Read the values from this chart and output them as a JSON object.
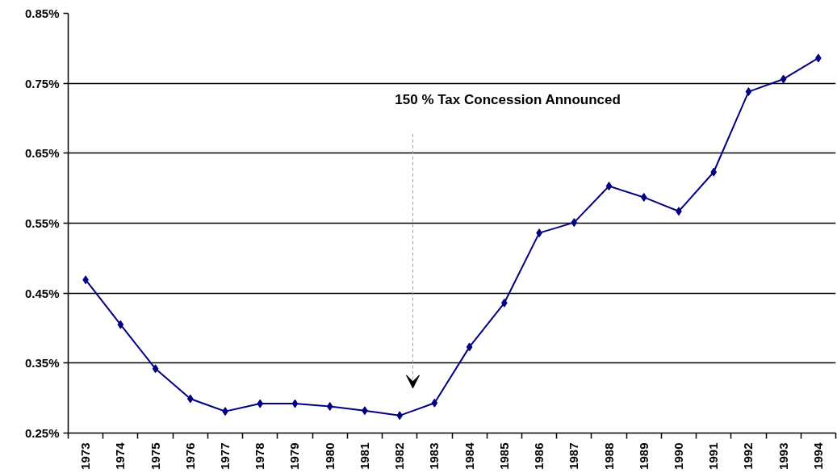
{
  "chart_data": {
    "type": "line",
    "categories": [
      "1973",
      "1974",
      "1975",
      "1976",
      "1977",
      "1978",
      "1979",
      "1980",
      "1981",
      "1982",
      "1983",
      "1984",
      "1985",
      "1986",
      "1987",
      "1988",
      "1989",
      "1990",
      "1991",
      "1992",
      "1993",
      "1994"
    ],
    "series": [
      {
        "color": "#000080",
        "values": [
          0.469,
          0.405,
          0.342,
          0.299,
          0.281,
          0.292,
          0.292,
          0.288,
          0.282,
          0.275,
          0.293,
          0.373,
          0.436,
          0.536,
          0.551,
          0.603,
          0.587,
          0.567,
          0.623,
          0.738,
          0.756,
          0.786
        ]
      }
    ],
    "ylim": [
      0.25,
      0.85
    ],
    "yticks": [
      {
        "value": 0.25,
        "label": "0.25%"
      },
      {
        "value": 0.35,
        "label": "0.35%"
      },
      {
        "value": 0.45,
        "label": "0.45%"
      },
      {
        "value": 0.55,
        "label": "0.55%"
      },
      {
        "value": 0.65,
        "label": "0.65%"
      },
      {
        "value": 0.75,
        "label": "0.75%"
      },
      {
        "value": 0.85,
        "label": "0.85%"
      }
    ],
    "grid": "y",
    "marker": "diamond",
    "line_style": "solid",
    "annotations": [
      "150 % Tax Concession Announced"
    ]
  }
}
